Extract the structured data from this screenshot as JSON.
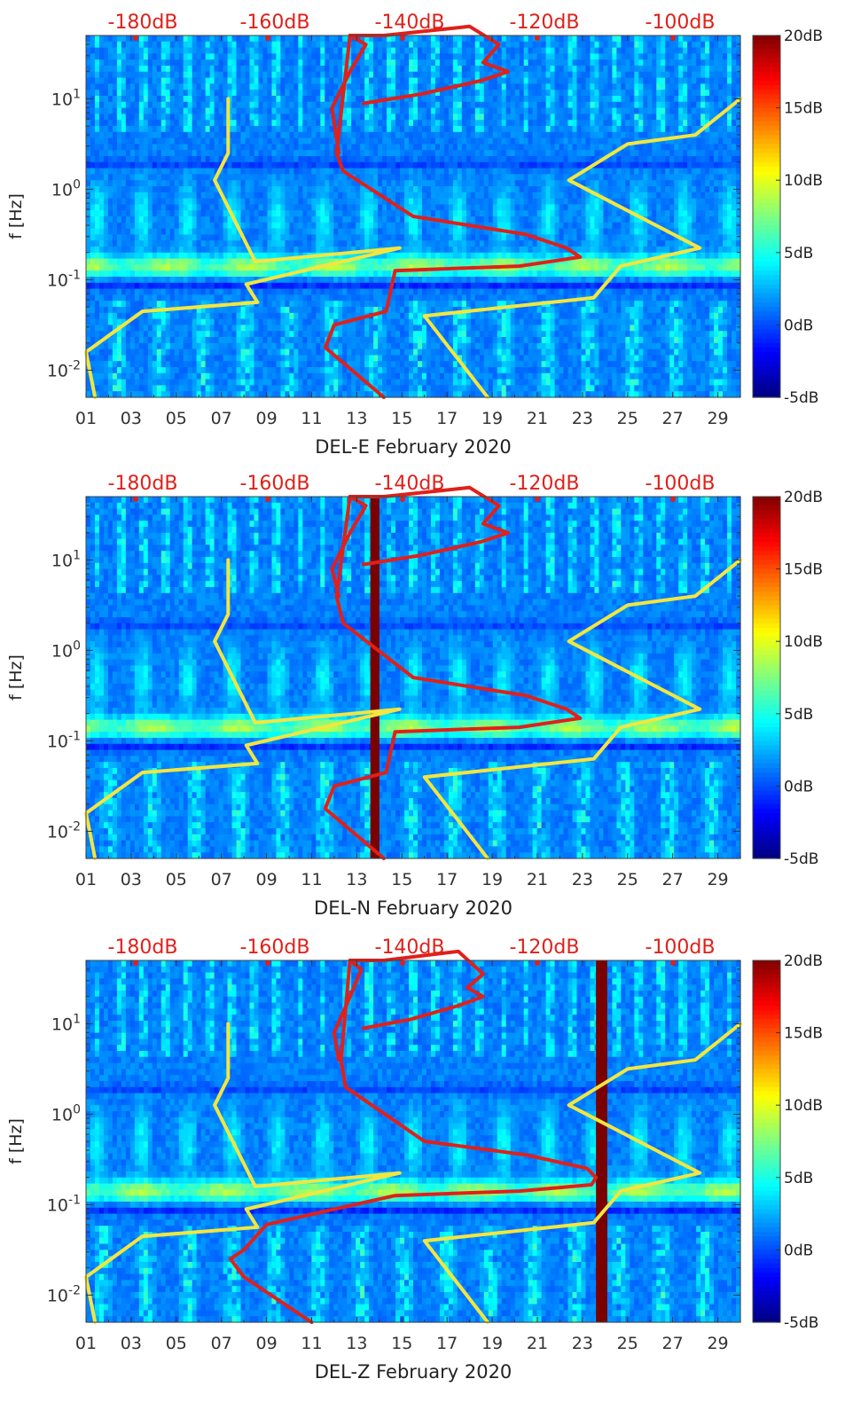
{
  "colors": {
    "background": "#ffffff",
    "spectrogram_base": "#1a5cf0",
    "noise_model_line": "#f2e640",
    "psd_line": "#e0201a",
    "db_label": "#e0201a",
    "gap_bar": "#7a0000"
  },
  "chart_data": [
    {
      "type": "heatmap",
      "title": "",
      "xlabel": "DEL-E February 2020",
      "ylabel": "f [Hz]",
      "x_ticks": [
        "01",
        "03",
        "05",
        "07",
        "09",
        "11",
        "13",
        "15",
        "17",
        "19",
        "21",
        "23",
        "25",
        "27",
        "29"
      ],
      "y_ticks": [
        "10^-2",
        "10^-1",
        "10^0",
        "10^1"
      ],
      "xlim": [
        1,
        30
      ],
      "ylim_log10": [
        -2.3,
        1.7
      ],
      "top_axis_labels": [
        "-180dB",
        "-160dB",
        "-140dB",
        "-120dB",
        "-100dB"
      ],
      "colorbar_ticks": [
        "20dB",
        "15dB",
        "10dB",
        "5dB",
        "0dB",
        "-5dB"
      ],
      "colorbar_range": [
        -5,
        20
      ],
      "data_gap_days": [],
      "series": [
        {
          "name": "noise model low",
          "color": "yellow",
          "points": [
            [
              7.3,
              1.0
            ],
            [
              7.3,
              0.4
            ],
            [
              6.7,
              0.1
            ],
            [
              8.5,
              -0.8
            ],
            [
              14.9,
              -0.65
            ],
            [
              8.1,
              -1.05
            ],
            [
              8.6,
              -1.25
            ],
            [
              3.5,
              -1.35
            ],
            [
              1.0,
              -1.8
            ],
            [
              1.4,
              -2.3
            ]
          ]
        },
        {
          "name": "noise model high",
          "color": "yellow",
          "points": [
            [
              30.0,
              1.0
            ],
            [
              28.0,
              0.6
            ],
            [
              25.0,
              0.5
            ],
            [
              22.4,
              0.1
            ],
            [
              28.2,
              -0.65
            ],
            [
              24.7,
              -0.85
            ],
            [
              23.5,
              -1.2
            ],
            [
              19.0,
              -1.32
            ],
            [
              16.0,
              -1.4
            ],
            [
              18.8,
              -2.3
            ]
          ]
        },
        {
          "name": "PSD",
          "color": "red",
          "points": [
            [
              12.2,
              0.4
            ],
            [
              11.9,
              0.9
            ],
            [
              12.7,
              1.3
            ],
            [
              13.4,
              1.6
            ],
            [
              12.7,
              1.7
            ],
            [
              12.1,
              0.4
            ],
            [
              12.4,
              0.2
            ],
            [
              15.5,
              -0.3
            ],
            [
              20.5,
              -0.5
            ],
            [
              22.3,
              -0.65
            ],
            [
              22.9,
              -0.75
            ],
            [
              20.2,
              -0.85
            ],
            [
              14.7,
              -0.9
            ],
            [
              14.3,
              -1.35
            ],
            [
              12.0,
              -1.5
            ],
            [
              11.6,
              -1.75
            ],
            [
              14.2,
              -2.3
            ]
          ]
        },
        {
          "name": "PSD high-frequency tail",
          "color": "red",
          "points": [
            [
              12.7,
              1.7
            ],
            [
              14.2,
              1.7
            ],
            [
              18.0,
              1.8
            ],
            [
              19.3,
              1.6
            ],
            [
              18.6,
              1.4
            ],
            [
              19.7,
              1.3
            ],
            [
              18.5,
              1.2
            ],
            [
              15.8,
              1.05
            ],
            [
              13.3,
              0.95
            ]
          ]
        }
      ]
    },
    {
      "type": "heatmap",
      "title": "",
      "xlabel": "DEL-N February 2020",
      "ylabel": "f [Hz]",
      "x_ticks": [
        "01",
        "03",
        "05",
        "07",
        "09",
        "11",
        "13",
        "15",
        "17",
        "19",
        "21",
        "23",
        "25",
        "27",
        "29"
      ],
      "y_ticks": [
        "10^-2",
        "10^-1",
        "10^0",
        "10^1"
      ],
      "xlim": [
        1,
        30
      ],
      "ylim_log10": [
        -2.3,
        1.7
      ],
      "top_axis_labels": [
        "-180dB",
        "-160dB",
        "-140dB",
        "-120dB",
        "-100dB"
      ],
      "colorbar_ticks": [
        "20dB",
        "15dB",
        "10dB",
        "5dB",
        "0dB",
        "-5dB"
      ],
      "colorbar_range": [
        -5,
        20
      ],
      "data_gap_days": [
        [
          13.6,
          14.0
        ]
      ],
      "series": [
        {
          "name": "noise model low",
          "color": "yellow",
          "points": [
            [
              7.3,
              1.0
            ],
            [
              7.3,
              0.4
            ],
            [
              6.7,
              0.1
            ],
            [
              8.5,
              -0.8
            ],
            [
              14.9,
              -0.65
            ],
            [
              8.1,
              -1.05
            ],
            [
              8.6,
              -1.25
            ],
            [
              3.5,
              -1.35
            ],
            [
              1.0,
              -1.8
            ],
            [
              1.4,
              -2.3
            ]
          ]
        },
        {
          "name": "noise model high",
          "color": "yellow",
          "points": [
            [
              30.0,
              1.0
            ],
            [
              28.0,
              0.6
            ],
            [
              25.0,
              0.5
            ],
            [
              22.4,
              0.1
            ],
            [
              28.2,
              -0.65
            ],
            [
              24.7,
              -0.85
            ],
            [
              23.5,
              -1.2
            ],
            [
              19.0,
              -1.32
            ],
            [
              16.0,
              -1.4
            ],
            [
              18.8,
              -2.3
            ]
          ]
        },
        {
          "name": "PSD",
          "color": "red",
          "points": [
            [
              12.2,
              0.6
            ],
            [
              11.9,
              0.9
            ],
            [
              12.7,
              1.3
            ],
            [
              13.4,
              1.6
            ],
            [
              12.7,
              1.7
            ],
            [
              12.1,
              0.6
            ],
            [
              12.4,
              0.3
            ],
            [
              15.5,
              -0.3
            ],
            [
              20.5,
              -0.5
            ],
            [
              22.3,
              -0.65
            ],
            [
              22.9,
              -0.75
            ],
            [
              20.2,
              -0.85
            ],
            [
              14.7,
              -0.9
            ],
            [
              14.3,
              -1.35
            ],
            [
              12.0,
              -1.5
            ],
            [
              11.6,
              -1.75
            ],
            [
              14.2,
              -2.3
            ]
          ]
        },
        {
          "name": "PSD high-frequency tail",
          "color": "red",
          "points": [
            [
              12.7,
              1.7
            ],
            [
              14.2,
              1.7
            ],
            [
              18.0,
              1.8
            ],
            [
              19.3,
              1.6
            ],
            [
              18.6,
              1.4
            ],
            [
              19.7,
              1.3
            ],
            [
              18.5,
              1.2
            ],
            [
              15.8,
              1.05
            ],
            [
              13.3,
              0.95
            ]
          ]
        }
      ]
    },
    {
      "type": "heatmap",
      "title": "",
      "xlabel": "DEL-Z February 2020",
      "ylabel": "f [Hz]",
      "x_ticks": [
        "01",
        "03",
        "05",
        "07",
        "09",
        "11",
        "13",
        "15",
        "17",
        "19",
        "21",
        "23",
        "25",
        "27",
        "29"
      ],
      "y_ticks": [
        "10^-2",
        "10^-1",
        "10^0",
        "10^1"
      ],
      "xlim": [
        1,
        30
      ],
      "ylim_log10": [
        -2.3,
        1.7
      ],
      "top_axis_labels": [
        "-180dB",
        "-160dB",
        "-140dB",
        "-120dB",
        "-100dB"
      ],
      "colorbar_ticks": [
        "20dB",
        "15dB",
        "10dB",
        "5dB",
        "0dB",
        "-5dB"
      ],
      "colorbar_range": [
        -5,
        20
      ],
      "data_gap_days": [
        [
          23.6,
          24.1
        ]
      ],
      "series": [
        {
          "name": "noise model low",
          "color": "yellow",
          "points": [
            [
              7.3,
              1.0
            ],
            [
              7.3,
              0.4
            ],
            [
              6.7,
              0.1
            ],
            [
              8.5,
              -0.8
            ],
            [
              14.9,
              -0.65
            ],
            [
              8.1,
              -1.05
            ],
            [
              8.6,
              -1.25
            ],
            [
              3.5,
              -1.35
            ],
            [
              1.0,
              -1.8
            ],
            [
              1.4,
              -2.3
            ]
          ]
        },
        {
          "name": "noise model high",
          "color": "yellow",
          "points": [
            [
              30.0,
              1.0
            ],
            [
              28.0,
              0.6
            ],
            [
              25.0,
              0.5
            ],
            [
              22.4,
              0.1
            ],
            [
              28.2,
              -0.65
            ],
            [
              24.7,
              -0.85
            ],
            [
              23.5,
              -1.2
            ],
            [
              19.0,
              -1.32
            ],
            [
              16.0,
              -1.4
            ],
            [
              18.8,
              -2.3
            ]
          ]
        },
        {
          "name": "PSD",
          "color": "red",
          "points": [
            [
              12.2,
              0.6
            ],
            [
              12.0,
              0.9
            ],
            [
              12.7,
              1.3
            ],
            [
              13.2,
              1.6
            ],
            [
              12.7,
              1.7
            ],
            [
              12.3,
              0.6
            ],
            [
              12.5,
              0.3
            ],
            [
              16.0,
              -0.3
            ],
            [
              20.5,
              -0.45
            ],
            [
              23.2,
              -0.6
            ],
            [
              23.6,
              -0.7
            ],
            [
              23.4,
              -0.78
            ],
            [
              20.2,
              -0.85
            ],
            [
              14.7,
              -0.9
            ],
            [
              12.0,
              -1.05
            ],
            [
              9.0,
              -1.22
            ],
            [
              8.0,
              -1.5
            ],
            [
              7.4,
              -1.6
            ],
            [
              8.0,
              -1.8
            ],
            [
              11.0,
              -2.3
            ]
          ]
        },
        {
          "name": "PSD high-frequency tail",
          "color": "red",
          "points": [
            [
              12.7,
              1.7
            ],
            [
              14.2,
              1.7
            ],
            [
              17.5,
              1.8
            ],
            [
              18.6,
              1.55
            ],
            [
              17.9,
              1.4
            ],
            [
              18.6,
              1.3
            ],
            [
              17.5,
              1.2
            ],
            [
              15.4,
              1.05
            ],
            [
              13.3,
              0.95
            ]
          ]
        }
      ]
    }
  ]
}
